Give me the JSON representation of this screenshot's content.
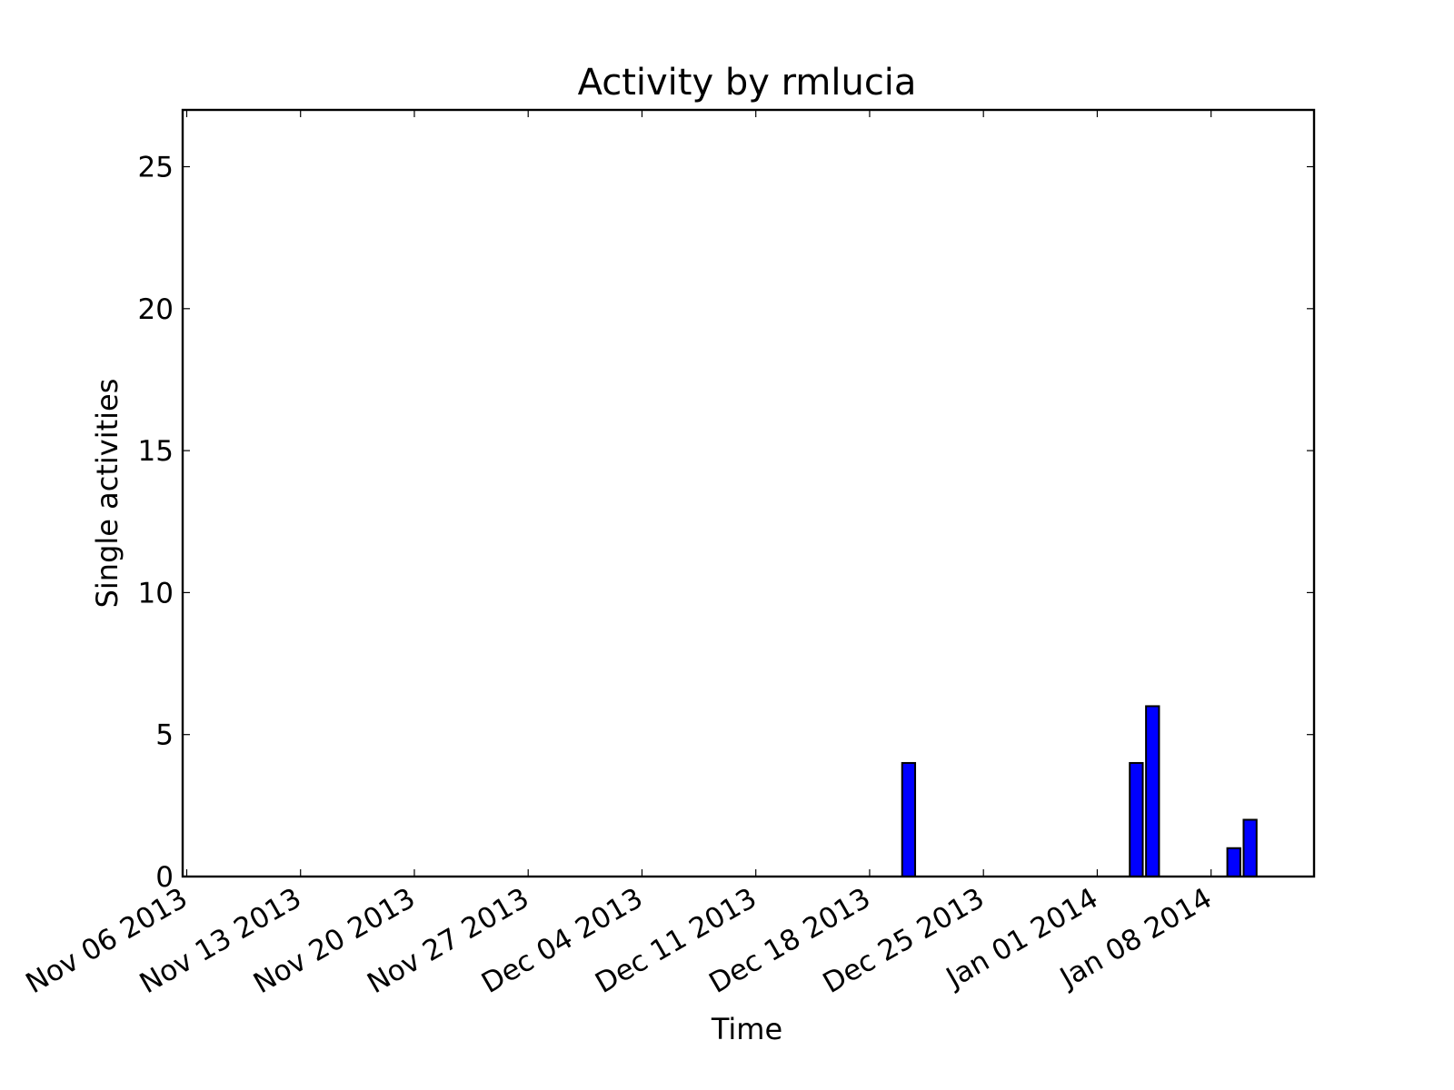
{
  "chart_data": {
    "type": "bar",
    "title": "Activity by rmlucia",
    "xlabel": "Time",
    "ylabel": "Single activities",
    "x_tick_labels": [
      "Nov 06 2013",
      "Nov 13 2013",
      "Nov 20 2013",
      "Nov 27 2013",
      "Dec 04 2013",
      "Dec 11 2013",
      "Dec 18 2013",
      "Dec 25 2013",
      "Jan 01 2014",
      "Jan 08 2014"
    ],
    "x_tick_dates": [
      "2013-11-06",
      "2013-11-13",
      "2013-11-20",
      "2013-11-27",
      "2013-12-04",
      "2013-12-11",
      "2013-12-18",
      "2013-12-25",
      "2014-01-01",
      "2014-01-08"
    ],
    "xlim": [
      "2013-11-05T18:00",
      "2014-01-14T08:00"
    ],
    "y_tick_labels": [
      "0",
      "5",
      "10",
      "15",
      "20",
      "25"
    ],
    "y_ticks": [
      0,
      5,
      10,
      15,
      20,
      25
    ],
    "ylim": [
      0,
      27
    ],
    "bar_color": "#0000ff",
    "bar_edge_color": "#000000",
    "bars": [
      {
        "date": "2013-12-20",
        "value": 4
      },
      {
        "date": "2014-01-03",
        "value": 4
      },
      {
        "date": "2014-01-04",
        "value": 6
      },
      {
        "date": "2014-01-09",
        "value": 1
      },
      {
        "date": "2014-01-10",
        "value": 2
      }
    ],
    "grid": false,
    "legend": "none"
  }
}
